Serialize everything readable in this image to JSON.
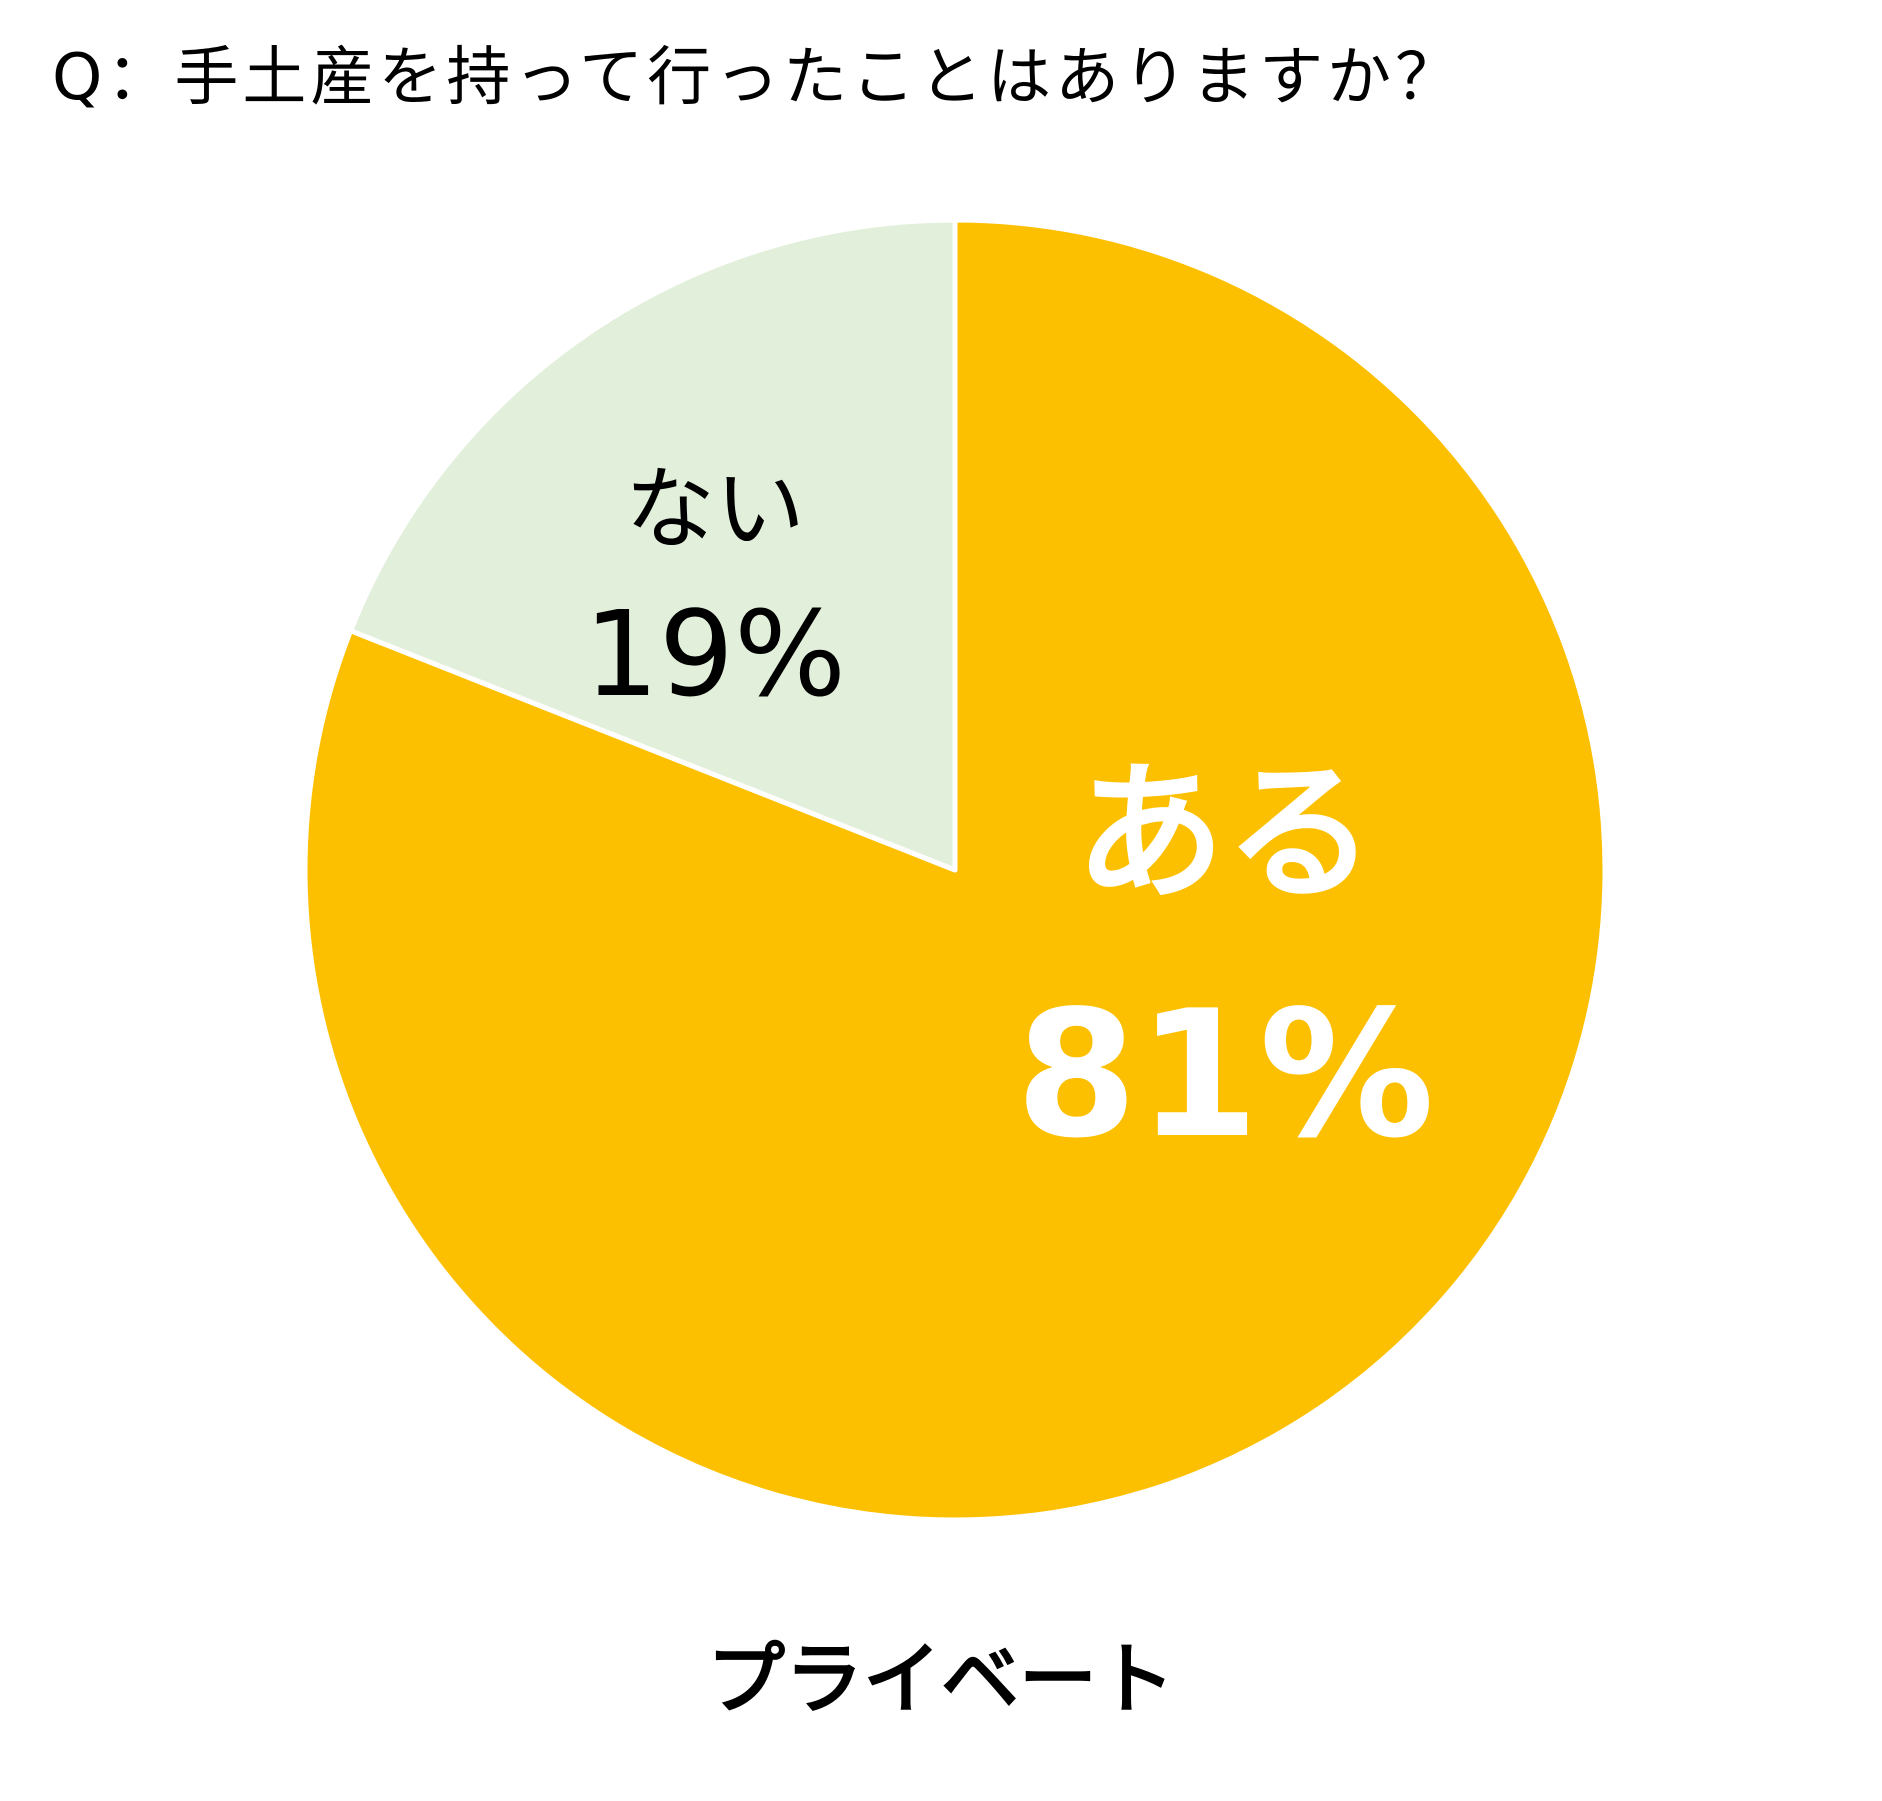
{
  "question": "Q：手土産を持って行ったことはありますか？",
  "caption": "プライベート",
  "chart_data": {
    "type": "pie",
    "title": "Q：手土産を持って行ったことはありますか？",
    "subtitle": "プライベート",
    "slices": [
      {
        "label": "ある",
        "value": 81,
        "value_label": "81%",
        "color": "#FDC000",
        "text_color": "#FFFFFF"
      },
      {
        "label": "ない",
        "value": 19,
        "value_label": "19%",
        "color": "#E2EFDA",
        "text_color": "#000000"
      }
    ],
    "start_angle": "12 o'clock",
    "direction": "clockwise",
    "legend": "none"
  }
}
